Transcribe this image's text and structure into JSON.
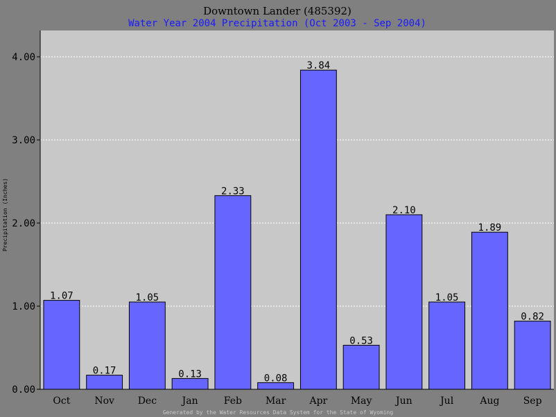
{
  "chart_data": {
    "type": "bar",
    "title": "Downtown Lander (485392)",
    "subtitle": "Water Year 2004 Precipitation (Oct 2003 - Sep 2004)",
    "ylabel": "Precipitation (Inches)",
    "footer": "Generated by the Water Resources Data System for the State of Wyoming",
    "categories": [
      "Oct",
      "Nov",
      "Dec",
      "Jan",
      "Feb",
      "Mar",
      "Apr",
      "May",
      "Jun",
      "Jul",
      "Aug",
      "Sep"
    ],
    "values": [
      1.07,
      0.17,
      1.05,
      0.13,
      2.33,
      0.08,
      3.84,
      0.53,
      2.1,
      1.05,
      1.89,
      0.82
    ],
    "value_labels": [
      "1.07",
      "0.17",
      "1.05",
      "0.13",
      "2.33",
      "0.08",
      "3.84",
      "0.53",
      "2.10",
      "1.05",
      "1.89",
      "0.82"
    ],
    "ylim": [
      0,
      4.0
    ],
    "yticks": [
      0,
      1,
      2,
      3,
      4
    ],
    "ytick_labels": [
      "0.00",
      "1.00",
      "2.00",
      "3.00",
      "4.00"
    ],
    "grid": true,
    "legend": "none",
    "colors": {
      "background": "#808080",
      "plot_area": "#c8c8c8",
      "bar_fill": "#6666ff",
      "bar_edge": "#000000",
      "grid": "#ffffff",
      "title": "#000000",
      "subtitle": "#1a1aff",
      "footer": "#c8c8c8"
    }
  }
}
